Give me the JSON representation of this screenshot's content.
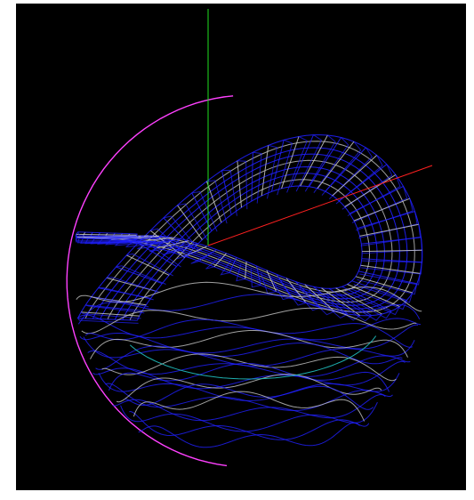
{
  "viewer": {
    "background_color": "#000000",
    "frame_color": "#ffffff"
  },
  "axes": {
    "x_axis_color": "#ff2020",
    "y_axis_color": "#20e020"
  },
  "model": {
    "outer_ring_color": "#ff40ff",
    "wire_color": "#2020ff",
    "inner_wire_color": "#c8c8c8",
    "accent_wire_color": "#20c0c0"
  }
}
